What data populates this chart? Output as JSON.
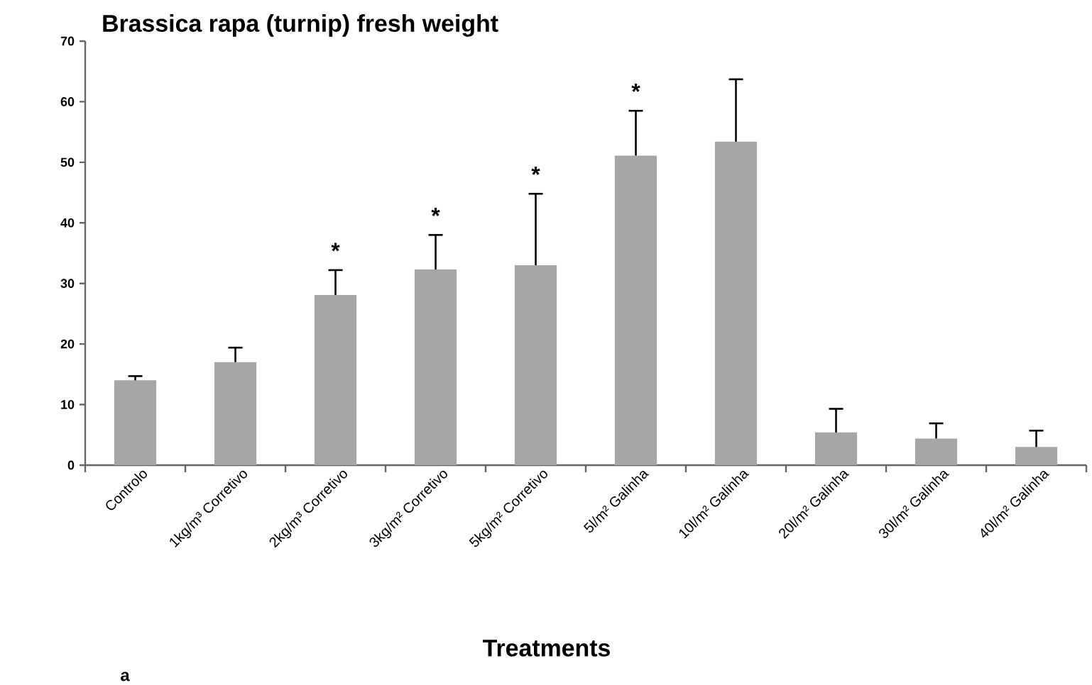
{
  "chart_data": {
    "type": "bar",
    "title": "Brassica  rapa (turnip) fresh weight",
    "xlabel": "Treatments",
    "categories": [
      "Controlo",
      "1kg/m³ Corretivo",
      "2kg/m³ Corretivo",
      "3kg/m² Corretivo",
      "5kg/m² Corretivo",
      "5l/m² Galinha",
      "10l/m² Galinha",
      "20l/m² Galinha",
      "30l/m² Galinha",
      "40l/m² Galinha"
    ],
    "values": [
      14,
      17,
      28.1,
      32.3,
      33,
      51.1,
      53.4,
      5.4,
      4.4,
      3
    ],
    "errors": [
      0.7,
      2.4,
      4.1,
      5.7,
      11.8,
      7.4,
      10.3,
      3.9,
      2.5,
      2.7
    ],
    "color": "#a6a6a6",
    "ylim": [
      0,
      70
    ],
    "yticks": [
      0,
      10,
      20,
      30,
      40,
      50,
      60,
      70
    ],
    "annotations": [
      {
        "text": "*",
        "x": "2kg/m³ Corretivo",
        "y": 32.2
      },
      {
        "text": "*",
        "x": "3kg/m² Corretivo",
        "y": 38
      },
      {
        "text": "*",
        "x": "5kg/m² Corretivo",
        "y": 44.8
      },
      {
        "text": "*",
        "x": "5l/m² Galinha",
        "y": 58.5
      },
      "a"
    ]
  }
}
